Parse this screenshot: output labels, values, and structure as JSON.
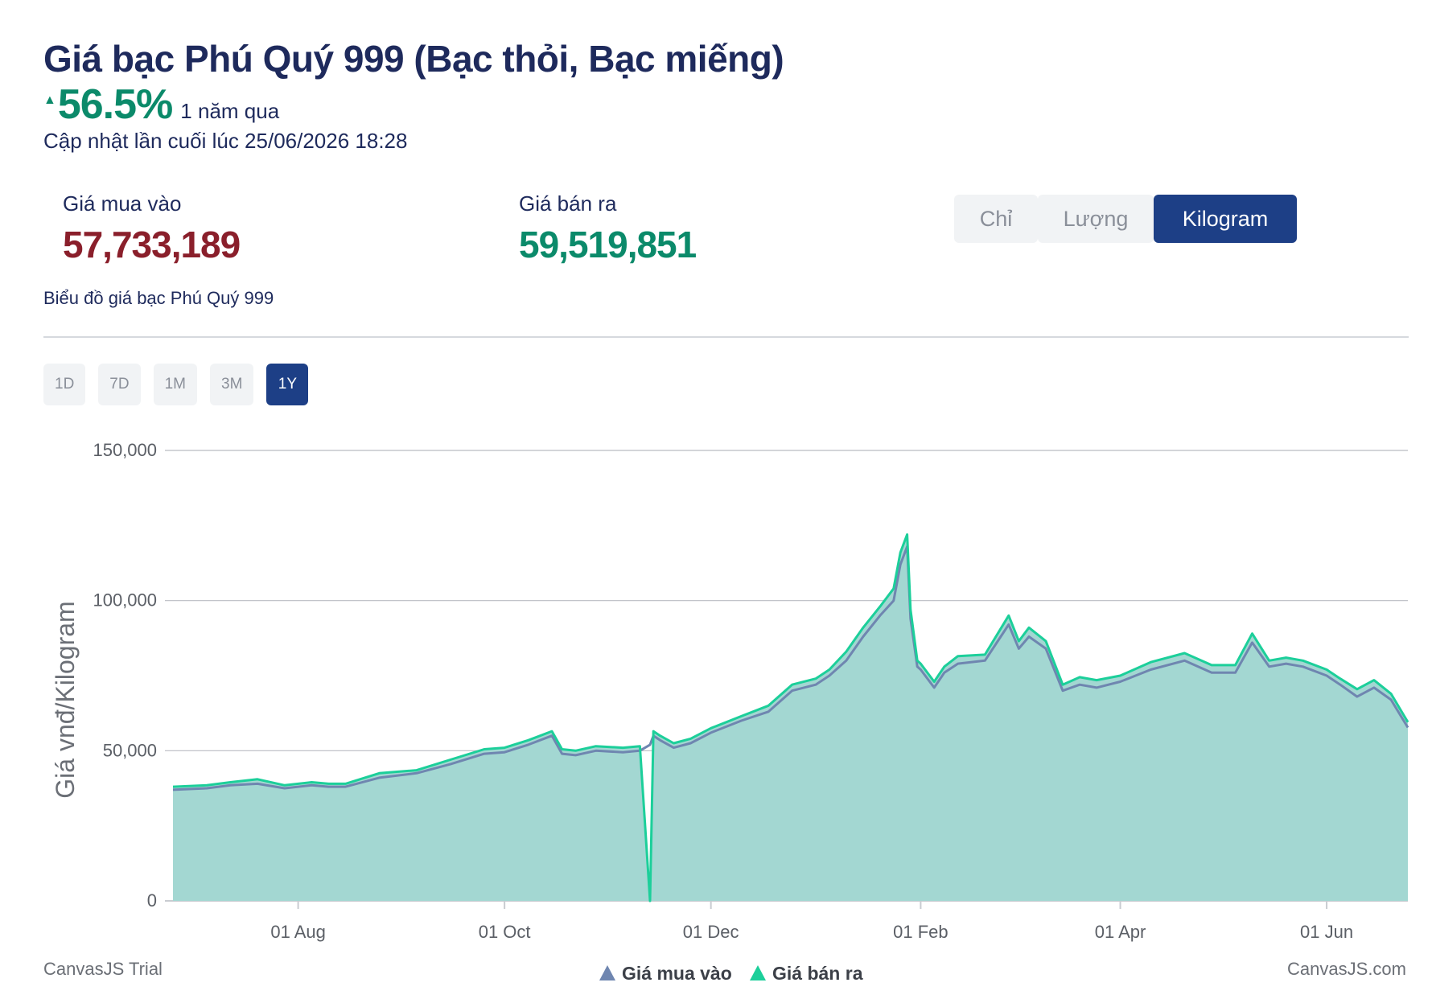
{
  "header": {
    "title": "Giá bạc Phú Quý 999 (Bạc thỏi, Bạc miếng)",
    "change_arrow": "▲",
    "change_value": "56.5%",
    "change_period": "1 năm qua",
    "updated": "Cập nhật lần cuối lúc 25/06/2026 18:28"
  },
  "prices": {
    "buy_label": "Giá mua vào",
    "buy_value": "57,733,189",
    "sell_label": "Giá bán ra",
    "sell_value": "59,519,851"
  },
  "unit_tabs": [
    {
      "label": "Chỉ",
      "active": false
    },
    {
      "label": "Lượng",
      "active": false
    },
    {
      "label": "Kilogram",
      "active": true
    }
  ],
  "chart_subtitle": "Biểu đồ giá bạc Phú Quý 999",
  "range_tabs": [
    {
      "label": "1D",
      "active": false
    },
    {
      "label": "7D",
      "active": false
    },
    {
      "label": "1M",
      "active": false
    },
    {
      "label": "3M",
      "active": false
    },
    {
      "label": "1Y",
      "active": true
    }
  ],
  "chart_data": {
    "type": "area",
    "ylabel": "Giá vnđ/Kilogram",
    "ylim": [
      0,
      150000
    ],
    "yticks": [
      "0",
      "50,000",
      "100,000",
      "150,000"
    ],
    "ytick_values": [
      0,
      50000,
      100000,
      150000
    ],
    "xlim": [
      "2025-06-25",
      "2026-06-25"
    ],
    "xticks": [
      "01 Aug",
      "01 Oct",
      "01 Dec",
      "01 Feb",
      "01 Apr",
      "01 Jun"
    ],
    "xtick_dates": [
      "2025-08-01",
      "2025-10-01",
      "2025-12-01",
      "2026-02-01",
      "2026-04-01",
      "2026-06-01"
    ],
    "grid": true,
    "legend": "bottom-center",
    "colors": {
      "buy": "#6f86b0",
      "sell": "#1ccf9a",
      "fill": "#a3d7d2",
      "axis": "#c9ccd1"
    },
    "series": [
      {
        "name": "Giá mua vào",
        "x": [
          "2025-06-25",
          "2025-07-05",
          "2025-07-12",
          "2025-07-20",
          "2025-07-28",
          "2025-08-05",
          "2025-08-10",
          "2025-08-15",
          "2025-08-25",
          "2025-09-05",
          "2025-09-15",
          "2025-09-25",
          "2025-10-01",
          "2025-10-08",
          "2025-10-15",
          "2025-10-18",
          "2025-10-22",
          "2025-10-28",
          "2025-11-05",
          "2025-11-10",
          "2025-11-13",
          "2025-11-14",
          "2025-11-16",
          "2025-11-20",
          "2025-11-25",
          "2025-12-01",
          "2025-12-10",
          "2025-12-18",
          "2025-12-25",
          "2026-01-01",
          "2026-01-05",
          "2026-01-10",
          "2026-01-15",
          "2026-01-20",
          "2026-01-24",
          "2026-01-26",
          "2026-01-28",
          "2026-01-29",
          "2026-01-31",
          "2026-02-01",
          "2026-02-05",
          "2026-02-08",
          "2026-02-12",
          "2026-02-20",
          "2026-02-27",
          "2026-03-02",
          "2026-03-05",
          "2026-03-10",
          "2026-03-15",
          "2026-03-20",
          "2026-03-25",
          "2026-04-01",
          "2026-04-10",
          "2026-04-20",
          "2026-04-28",
          "2026-05-05",
          "2026-05-10",
          "2026-05-15",
          "2026-05-20",
          "2026-05-25",
          "2026-06-01",
          "2026-06-05",
          "2026-06-10",
          "2026-06-15",
          "2026-06-20",
          "2026-06-25"
        ],
        "values": [
          37000,
          37500,
          38500,
          39000,
          37500,
          38500,
          38000,
          38000,
          41000,
          42500,
          45500,
          49000,
          49500,
          52000,
          55000,
          49000,
          48500,
          50000,
          49500,
          50000,
          52000,
          55000,
          53500,
          51000,
          52500,
          56000,
          60000,
          63000,
          70000,
          72000,
          75000,
          80000,
          88000,
          95000,
          100000,
          112000,
          118000,
          94000,
          78000,
          77000,
          71000,
          76000,
          79000,
          80000,
          92000,
          84000,
          88000,
          84000,
          70000,
          72000,
          71000,
          73000,
          77000,
          80000,
          76000,
          76000,
          86000,
          78000,
          79000,
          78000,
          75000,
          72000,
          68000,
          71000,
          67000,
          57733
        ]
      },
      {
        "name": "Giá bán ra",
        "x": [
          "2025-06-25",
          "2025-07-05",
          "2025-07-12",
          "2025-07-20",
          "2025-07-28",
          "2025-08-05",
          "2025-08-10",
          "2025-08-15",
          "2025-08-25",
          "2025-09-05",
          "2025-09-15",
          "2025-09-25",
          "2025-10-01",
          "2025-10-08",
          "2025-10-15",
          "2025-10-18",
          "2025-10-22",
          "2025-10-28",
          "2025-11-05",
          "2025-11-10",
          "2025-11-13",
          "2025-11-14",
          "2025-11-16",
          "2025-11-20",
          "2025-11-25",
          "2025-12-01",
          "2025-12-10",
          "2025-12-18",
          "2025-12-25",
          "2026-01-01",
          "2026-01-05",
          "2026-01-10",
          "2026-01-15",
          "2026-01-20",
          "2026-01-24",
          "2026-01-26",
          "2026-01-28",
          "2026-01-29",
          "2026-01-31",
          "2026-02-01",
          "2026-02-05",
          "2026-02-08",
          "2026-02-12",
          "2026-02-20",
          "2026-02-27",
          "2026-03-02",
          "2026-03-05",
          "2026-03-10",
          "2026-03-15",
          "2026-03-20",
          "2026-03-25",
          "2026-04-01",
          "2026-04-10",
          "2026-04-20",
          "2026-04-28",
          "2026-05-05",
          "2026-05-10",
          "2026-05-15",
          "2026-05-20",
          "2026-05-25",
          "2026-06-01",
          "2026-06-05",
          "2026-06-10",
          "2026-06-15",
          "2026-06-20",
          "2026-06-25"
        ],
        "values": [
          38000,
          38500,
          39500,
          40500,
          38500,
          39500,
          39000,
          39000,
          42500,
          43500,
          47000,
          50500,
          51000,
          53500,
          56500,
          50500,
          50000,
          51500,
          51000,
          51500,
          0,
          56500,
          55000,
          52500,
          54000,
          57500,
          61500,
          65000,
          72000,
          74000,
          77000,
          83000,
          91000,
          98000,
          104000,
          116000,
          122000,
          97000,
          80000,
          79000,
          73000,
          78000,
          81500,
          82000,
          95000,
          86500,
          91000,
          86500,
          72000,
          74500,
          73500,
          75000,
          79500,
          82500,
          78500,
          78500,
          89000,
          80000,
          81000,
          80000,
          77000,
          74000,
          70500,
          73500,
          69000,
          59520
        ]
      }
    ]
  },
  "watermark_left": "CanvasJS Trial",
  "watermark_right": "CanvasJS.com"
}
